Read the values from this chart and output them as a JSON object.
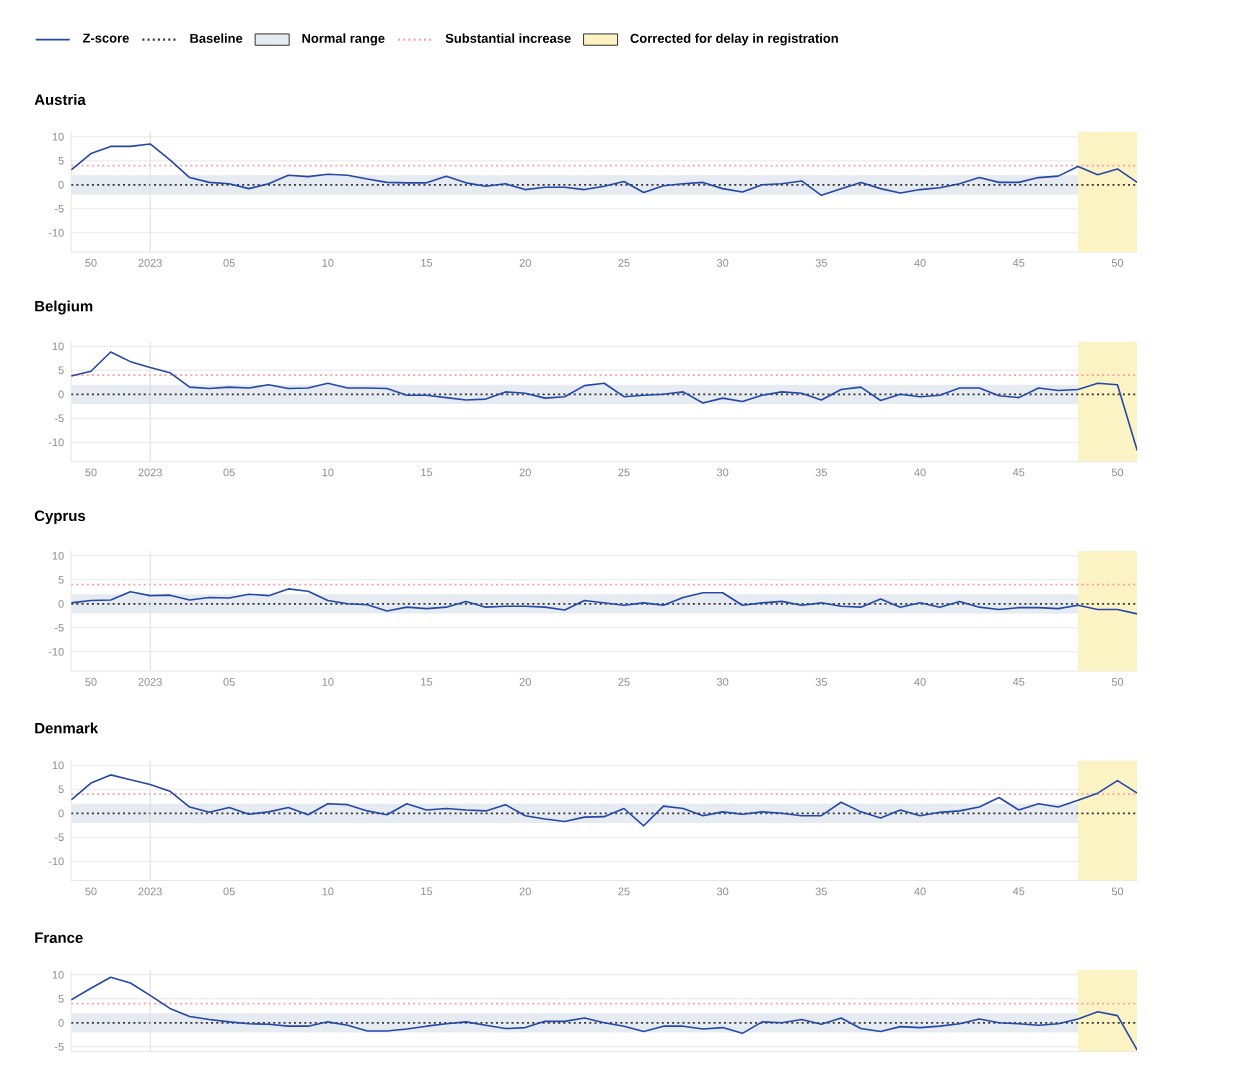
{
  "chart_data": [
    {
      "type": "line",
      "title": "Austria",
      "x": [
        "2022-12-05",
        "2022-12-12",
        "2022-12-19",
        "2022-12-26",
        "2023-01-02",
        "2023-01-09",
        "2023-01-16",
        "2023-01-23",
        "2023-01-30",
        "2023-02-06",
        "2023-02-13",
        "2023-02-20",
        "2023-02-27",
        "2023-03-06",
        "2023-03-13",
        "2023-03-20",
        "2023-03-27",
        "2023-04-03",
        "2023-04-10",
        "2023-04-17",
        "2023-04-24",
        "2023-05-01",
        "2023-05-08",
        "2023-05-15",
        "2023-05-22",
        "2023-05-29",
        "2023-06-05",
        "2023-06-12",
        "2023-06-19",
        "2023-06-26",
        "2023-07-03",
        "2023-07-10",
        "2023-07-17",
        "2023-07-24",
        "2023-07-31",
        "2023-08-07",
        "2023-08-14",
        "2023-08-21",
        "2023-08-28",
        "2023-09-04",
        "2023-09-11",
        "2023-09-18",
        "2023-09-25",
        "2023-10-02",
        "2023-10-09",
        "2023-10-16",
        "2023-10-23",
        "2023-10-30",
        "2023-11-06",
        "2023-11-13",
        "2023-11-20",
        "2023-11-27",
        "2023-12-04",
        "2023-12-11",
        "2023-12-18"
      ],
      "series": [
        {
          "name": "Z-score",
          "color": "#2447a8",
          "values": [
            3.1,
            6.5,
            8,
            8,
            8.5,
            5.2,
            1.5,
            0.5,
            0.2,
            -0.8,
            0.2,
            2,
            1.7,
            2.2,
            2,
            1.2,
            0.5,
            0.4,
            0.4,
            1.8,
            0.4,
            -0.3,
            0.2,
            -1,
            -0.5,
            -0.5,
            -1,
            -0.3,
            0.7,
            -1.6,
            -0.2,
            0.2,
            0.5,
            -0.8,
            -1.5,
            0,
            0.2,
            0.8,
            -2.2,
            -0.8,
            0.5,
            -0.8,
            -1.7,
            -1,
            -0.6,
            0.2,
            1.5,
            0.5,
            0.5,
            1.5,
            1.8,
            3.8,
            2.1,
            3.3,
            0.5
          ]
        }
      ],
      "xlim": [
        "2022-12-05",
        "2023-12-18"
      ],
      "ylim": [
        -14,
        11
      ],
      "xticks": [
        {
          "value": "2022-12-12",
          "label": "50"
        },
        {
          "value": "2023-01-02",
          "label": "2023"
        },
        {
          "value": "2023-01-30",
          "label": "05"
        },
        {
          "value": "2023-03-06",
          "label": "10"
        },
        {
          "value": "2023-04-10",
          "label": "15"
        },
        {
          "value": "2023-05-15",
          "label": "20"
        },
        {
          "value": "2023-06-19",
          "label": "25"
        },
        {
          "value": "2023-07-24",
          "label": "30"
        },
        {
          "value": "2023-08-28",
          "label": "35"
        },
        {
          "value": "2023-10-02",
          "label": "40"
        },
        {
          "value": "2023-11-06",
          "label": "45"
        },
        {
          "value": "2023-12-11",
          "label": "50"
        }
      ],
      "yticks": [
        10,
        5,
        0,
        -5,
        -10
      ],
      "grid": "y",
      "legend": "top",
      "ref_lines": [
        {
          "axis": "y",
          "value": 0,
          "label": "Baseline",
          "color": "#333333",
          "line_style": "dotted"
        },
        {
          "axis": "y",
          "value": 4,
          "label": "Substantial increase",
          "color": "#f4a3a3",
          "line_style": "dotted"
        },
        {
          "axis": "x",
          "value": "2023-01-02",
          "color": "#dddddd",
          "line_style": "solid"
        }
      ],
      "bands": [
        {
          "axis": "y",
          "from": -2,
          "to": 2,
          "label": "Normal range",
          "color": "#e6ebf1"
        },
        {
          "axis": "x",
          "from": "2023-11-27",
          "to": "2023-12-18",
          "label": "Corrected for delay in registration",
          "color": "#fcf3c4"
        }
      ]
    },
    {
      "type": "line",
      "title": "Belgium",
      "x": [
        "2022-12-05",
        "2022-12-12",
        "2022-12-19",
        "2022-12-26",
        "2023-01-02",
        "2023-01-09",
        "2023-01-16",
        "2023-01-23",
        "2023-01-30",
        "2023-02-06",
        "2023-02-13",
        "2023-02-20",
        "2023-02-27",
        "2023-03-06",
        "2023-03-13",
        "2023-03-20",
        "2023-03-27",
        "2023-04-03",
        "2023-04-10",
        "2023-04-17",
        "2023-04-24",
        "2023-05-01",
        "2023-05-08",
        "2023-05-15",
        "2023-05-22",
        "2023-05-29",
        "2023-06-05",
        "2023-06-12",
        "2023-06-19",
        "2023-06-26",
        "2023-07-03",
        "2023-07-10",
        "2023-07-17",
        "2023-07-24",
        "2023-07-31",
        "2023-08-07",
        "2023-08-14",
        "2023-08-21",
        "2023-08-28",
        "2023-09-04",
        "2023-09-11",
        "2023-09-18",
        "2023-09-25",
        "2023-10-02",
        "2023-10-09",
        "2023-10-16",
        "2023-10-23",
        "2023-10-30",
        "2023-11-06",
        "2023-11-13",
        "2023-11-20",
        "2023-11-27",
        "2023-12-04",
        "2023-12-11",
        "2023-12-18"
      ],
      "series": [
        {
          "color": "#2447a8",
          "values": [
            3.8,
            4.8,
            8.8,
            6.8,
            5.6,
            4.5,
            1.5,
            1.2,
            1.5,
            1.3,
            2,
            1.2,
            1.3,
            2.3,
            1.3,
            1.3,
            1.2,
            -0.2,
            -0.2,
            -0.7,
            -1.2,
            -1,
            0.5,
            0.2,
            -0.8,
            -0.5,
            1.8,
            2.3,
            -0.5,
            -0.2,
            0,
            0.5,
            -1.8,
            -0.8,
            -1.5,
            -0.2,
            0.5,
            0.2,
            -1.2,
            1,
            1.5,
            -1.3,
            0,
            -0.5,
            -0.2,
            1.3,
            1.3,
            -0.3,
            -0.7,
            1.3,
            0.8,
            1,
            2.3,
            2,
            -11.7
          ]
        }
      ],
      "xlim": [
        "2022-12-05",
        "2023-12-18"
      ],
      "ylim": [
        -14,
        11
      ],
      "xticks": [
        {
          "value": "2022-12-12",
          "label": "50"
        },
        {
          "value": "2023-01-02",
          "label": "2023"
        },
        {
          "value": "2023-01-30",
          "label": "05"
        },
        {
          "value": "2023-03-06",
          "label": "10"
        },
        {
          "value": "2023-04-10",
          "label": "15"
        },
        {
          "value": "2023-05-15",
          "label": "20"
        },
        {
          "value": "2023-06-19",
          "label": "25"
        },
        {
          "value": "2023-07-24",
          "label": "30"
        },
        {
          "value": "2023-08-28",
          "label": "35"
        },
        {
          "value": "2023-10-02",
          "label": "40"
        },
        {
          "value": "2023-11-06",
          "label": "45"
        },
        {
          "value": "2023-12-11",
          "label": "50"
        }
      ],
      "yticks": [
        10,
        5,
        0,
        -5,
        -10
      ],
      "grid": "y",
      "ref_lines": [
        {
          "axis": "y",
          "value": 0,
          "color": "#333333",
          "line_style": "dotted"
        },
        {
          "axis": "y",
          "value": 4,
          "color": "#f4a3a3",
          "line_style": "dotted"
        },
        {
          "axis": "x",
          "value": "2023-01-02",
          "color": "#dddddd",
          "line_style": "solid"
        }
      ],
      "bands": [
        {
          "axis": "y",
          "from": -2,
          "to": 2,
          "color": "#e6ebf1"
        },
        {
          "axis": "x",
          "from": "2023-11-27",
          "to": "2023-12-18",
          "color": "#fcf3c4"
        }
      ]
    },
    {
      "type": "line",
      "title": "Cyprus",
      "x": [
        "2022-12-05",
        "2022-12-12",
        "2022-12-19",
        "2022-12-26",
        "2023-01-02",
        "2023-01-09",
        "2023-01-16",
        "2023-01-23",
        "2023-01-30",
        "2023-02-06",
        "2023-02-13",
        "2023-02-20",
        "2023-02-27",
        "2023-03-06",
        "2023-03-13",
        "2023-03-20",
        "2023-03-27",
        "2023-04-03",
        "2023-04-10",
        "2023-04-17",
        "2023-04-24",
        "2023-05-01",
        "2023-05-08",
        "2023-05-15",
        "2023-05-22",
        "2023-05-29",
        "2023-06-05",
        "2023-06-12",
        "2023-06-19",
        "2023-06-26",
        "2023-07-03",
        "2023-07-10",
        "2023-07-17",
        "2023-07-24",
        "2023-07-31",
        "2023-08-07",
        "2023-08-14",
        "2023-08-21",
        "2023-08-28",
        "2023-09-04",
        "2023-09-11",
        "2023-09-18",
        "2023-09-25",
        "2023-10-02",
        "2023-10-09",
        "2023-10-16",
        "2023-10-23",
        "2023-10-30",
        "2023-11-06",
        "2023-11-13",
        "2023-11-20",
        "2023-11-27",
        "2023-12-04",
        "2023-12-11",
        "2023-12-18"
      ],
      "series": [
        {
          "color": "#2447a8",
          "values": [
            0.2,
            0.7,
            0.8,
            2.5,
            1.7,
            1.8,
            0.8,
            1.3,
            1.2,
            2,
            1.7,
            3.1,
            2.6,
            0.7,
            0,
            -0.2,
            -1.5,
            -0.7,
            -1,
            -0.7,
            0.5,
            -0.7,
            -0.5,
            -0.5,
            -0.7,
            -1.3,
            0.7,
            0.2,
            -0.3,
            0.2,
            -0.3,
            1.3,
            2.3,
            2.3,
            -0.3,
            0.2,
            0.5,
            -0.3,
            0.2,
            -0.5,
            -0.7,
            1,
            -0.7,
            0.2,
            -0.7,
            0.5,
            -0.7,
            -1.2,
            -0.8,
            -0.8,
            -1,
            -0.3,
            -1.2,
            -1.2,
            -2.1
          ]
        }
      ],
      "xlim": [
        "2022-12-05",
        "2023-12-18"
      ],
      "ylim": [
        -14,
        11
      ],
      "xticks": [
        {
          "value": "2022-12-12",
          "label": "50"
        },
        {
          "value": "2023-01-02",
          "label": "2023"
        },
        {
          "value": "2023-01-30",
          "label": "05"
        },
        {
          "value": "2023-03-06",
          "label": "10"
        },
        {
          "value": "2023-04-10",
          "label": "15"
        },
        {
          "value": "2023-05-15",
          "label": "20"
        },
        {
          "value": "2023-06-19",
          "label": "25"
        },
        {
          "value": "2023-07-24",
          "label": "30"
        },
        {
          "value": "2023-08-28",
          "label": "35"
        },
        {
          "value": "2023-10-02",
          "label": "40"
        },
        {
          "value": "2023-11-06",
          "label": "45"
        },
        {
          "value": "2023-12-11",
          "label": "50"
        }
      ],
      "yticks": [
        10,
        5,
        0,
        -5,
        -10
      ],
      "grid": "y",
      "ref_lines": [
        {
          "axis": "y",
          "value": 0,
          "color": "#333333",
          "line_style": "dotted"
        },
        {
          "axis": "y",
          "value": 4,
          "color": "#f4a3a3",
          "line_style": "dotted"
        },
        {
          "axis": "x",
          "value": "2023-01-02",
          "color": "#dddddd",
          "line_style": "solid"
        }
      ],
      "bands": [
        {
          "axis": "y",
          "from": -2,
          "to": 2,
          "color": "#e6ebf1"
        },
        {
          "axis": "x",
          "from": "2023-11-27",
          "to": "2023-12-18",
          "color": "#fcf3c4"
        }
      ]
    },
    {
      "type": "line",
      "title": "Denmark",
      "x": [
        "2022-12-05",
        "2022-12-12",
        "2022-12-19",
        "2022-12-26",
        "2023-01-02",
        "2023-01-09",
        "2023-01-16",
        "2023-01-23",
        "2023-01-30",
        "2023-02-06",
        "2023-02-13",
        "2023-02-20",
        "2023-02-27",
        "2023-03-06",
        "2023-03-13",
        "2023-03-20",
        "2023-03-27",
        "2023-04-03",
        "2023-04-10",
        "2023-04-17",
        "2023-04-24",
        "2023-05-01",
        "2023-05-08",
        "2023-05-15",
        "2023-05-22",
        "2023-05-29",
        "2023-06-05",
        "2023-06-12",
        "2023-06-19",
        "2023-06-26",
        "2023-07-03",
        "2023-07-10",
        "2023-07-17",
        "2023-07-24",
        "2023-07-31",
        "2023-08-07",
        "2023-08-14",
        "2023-08-21",
        "2023-08-28",
        "2023-09-04",
        "2023-09-11",
        "2023-09-18",
        "2023-09-25",
        "2023-10-02",
        "2023-10-09",
        "2023-10-16",
        "2023-10-23",
        "2023-10-30",
        "2023-11-06",
        "2023-11-13",
        "2023-11-20",
        "2023-11-27",
        "2023-12-04",
        "2023-12-11",
        "2023-12-18"
      ],
      "series": [
        {
          "color": "#2447a8",
          "values": [
            2.8,
            6.3,
            8,
            7,
            6,
            4.6,
            1.3,
            0.2,
            1.2,
            -0.2,
            0.3,
            1.2,
            -0.3,
            2,
            1.8,
            0.5,
            -0.3,
            2,
            0.7,
            1,
            0.7,
            0.5,
            1.8,
            -0.5,
            -1.2,
            -1.7,
            -0.8,
            -0.7,
            1,
            -2.6,
            1.5,
            1,
            -0.5,
            0.3,
            -0.2,
            0.3,
            0,
            -0.5,
            -0.5,
            2.3,
            0.3,
            -1,
            0.7,
            -0.5,
            0.2,
            0.5,
            1.3,
            3.3,
            0.7,
            2,
            1.3,
            2.7,
            4.2,
            6.8,
            4.2
          ]
        }
      ],
      "xlim": [
        "2022-12-05",
        "2023-12-18"
      ],
      "ylim": [
        -14,
        11
      ],
      "xticks": [
        {
          "value": "2022-12-12",
          "label": "50"
        },
        {
          "value": "2023-01-02",
          "label": "2023"
        },
        {
          "value": "2023-01-30",
          "label": "05"
        },
        {
          "value": "2023-03-06",
          "label": "10"
        },
        {
          "value": "2023-04-10",
          "label": "15"
        },
        {
          "value": "2023-05-15",
          "label": "20"
        },
        {
          "value": "2023-06-19",
          "label": "25"
        },
        {
          "value": "2023-07-24",
          "label": "30"
        },
        {
          "value": "2023-08-28",
          "label": "35"
        },
        {
          "value": "2023-10-02",
          "label": "40"
        },
        {
          "value": "2023-11-06",
          "label": "45"
        },
        {
          "value": "2023-12-11",
          "label": "50"
        }
      ],
      "yticks": [
        10,
        5,
        0,
        -5,
        -10
      ],
      "grid": "y",
      "ref_lines": [
        {
          "axis": "y",
          "value": 0,
          "color": "#333333",
          "line_style": "dotted"
        },
        {
          "axis": "y",
          "value": 4,
          "color": "#f4a3a3",
          "line_style": "dotted"
        },
        {
          "axis": "x",
          "value": "2023-01-02",
          "color": "#dddddd",
          "line_style": "solid"
        }
      ],
      "bands": [
        {
          "axis": "y",
          "from": -2,
          "to": 2,
          "color": "#e6ebf1"
        },
        {
          "axis": "x",
          "from": "2023-11-27",
          "to": "2023-12-18",
          "color": "#fcf3c4"
        }
      ]
    },
    {
      "type": "line",
      "title": "France",
      "x": [
        "2022-12-05",
        "2022-12-12",
        "2022-12-19",
        "2022-12-26",
        "2023-01-02",
        "2023-01-09",
        "2023-01-16",
        "2023-01-23",
        "2023-01-30",
        "2023-02-06",
        "2023-02-13",
        "2023-02-20",
        "2023-02-27",
        "2023-03-06",
        "2023-03-13",
        "2023-03-20",
        "2023-03-27",
        "2023-04-03",
        "2023-04-10",
        "2023-04-17",
        "2023-04-24",
        "2023-05-01",
        "2023-05-08",
        "2023-05-15",
        "2023-05-22",
        "2023-05-29",
        "2023-06-05",
        "2023-06-12",
        "2023-06-19",
        "2023-06-26",
        "2023-07-03",
        "2023-07-10",
        "2023-07-17",
        "2023-07-24",
        "2023-07-31",
        "2023-08-07",
        "2023-08-14",
        "2023-08-21",
        "2023-08-28",
        "2023-09-04",
        "2023-09-11",
        "2023-09-18",
        "2023-09-25",
        "2023-10-02",
        "2023-10-09",
        "2023-10-16",
        "2023-10-23",
        "2023-10-30",
        "2023-11-06",
        "2023-11-13",
        "2023-11-20",
        "2023-11-27",
        "2023-12-04",
        "2023-12-11",
        "2023-12-18"
      ],
      "series": [
        {
          "color": "#2447a8",
          "values": [
            4.8,
            7.2,
            9.5,
            8.3,
            5.7,
            3,
            1.3,
            0.7,
            0.2,
            -0.2,
            -0.3,
            -0.7,
            -0.7,
            0.2,
            -0.5,
            -1.7,
            -1.7,
            -1.3,
            -0.7,
            -0.2,
            0.2,
            -0.5,
            -1.2,
            -1,
            0.3,
            0.3,
            1,
            0,
            -0.7,
            -1.8,
            -0.7,
            -0.7,
            -1.3,
            -1,
            -2.2,
            0.2,
            0,
            0.7,
            -0.3,
            1,
            -1.2,
            -1.8,
            -0.8,
            -1,
            -0.7,
            -0.2,
            0.8,
            0,
            -0.2,
            -0.5,
            -0.2,
            0.8,
            2.3,
            1.5,
            -5.7
          ]
        }
      ],
      "xlim": [
        "2022-12-05",
        "2023-12-18"
      ],
      "ylim": [
        -6,
        11
      ],
      "yticks": [
        10,
        5,
        0,
        -5
      ],
      "grid": "y",
      "tick_labels": "y",
      "ref_lines": [
        {
          "axis": "y",
          "value": 0,
          "color": "#333333",
          "line_style": "dotted"
        },
        {
          "axis": "y",
          "value": 4,
          "color": "#f4a3a3",
          "line_style": "dotted"
        },
        {
          "axis": "x",
          "value": "2023-01-02",
          "color": "#dddddd",
          "line_style": "solid"
        }
      ],
      "bands": [
        {
          "axis": "y",
          "from": -2,
          "to": 2,
          "color": "#e6ebf1"
        },
        {
          "axis": "x",
          "from": "2023-11-27",
          "to": "2023-12-18",
          "color": "#fcf3c4"
        }
      ]
    }
  ]
}
